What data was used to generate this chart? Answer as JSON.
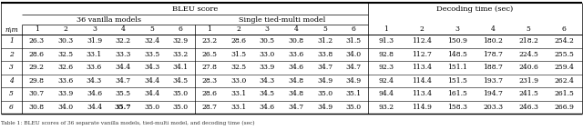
{
  "title_bleu": "BLEU score",
  "title_decoding": "Decoding time (sec)",
  "subtitle_vanilla": "36 vanilla models",
  "subtitle_tied": "Single tied-multi model",
  "col_header_nm": "n\\m",
  "col_nums": [
    "1",
    "2",
    "3",
    "4",
    "5",
    "6"
  ],
  "rows": [
    [
      "1",
      "26.3",
      "30.3",
      "31.9",
      "32.2",
      "32.4",
      "32.9",
      "23.2",
      "28.6",
      "30.5",
      "30.8",
      "31.2",
      "31.5",
      "91.3",
      "112.4",
      "150.9",
      "180.2",
      "218.2",
      "254.2"
    ],
    [
      "2",
      "28.6",
      "32.5",
      "33.1",
      "33.3",
      "33.5",
      "33.2",
      "26.5",
      "31.5",
      "33.0",
      "33.6",
      "33.8",
      "34.0",
      "92.8",
      "112.7",
      "148.5",
      "178.7",
      "224.5",
      "255.5"
    ],
    [
      "3",
      "29.2",
      "32.6",
      "33.6",
      "34.4",
      "34.3",
      "34.1",
      "27.8",
      "32.5",
      "33.9",
      "34.6",
      "34.7",
      "34.7",
      "92.3",
      "113.4",
      "151.1",
      "188.7",
      "240.6",
      "259.4"
    ],
    [
      "4",
      "29.8",
      "33.6",
      "34.3",
      "34.7",
      "34.4",
      "34.5",
      "28.3",
      "33.0",
      "34.3",
      "34.8",
      "34.9",
      "34.9",
      "92.4",
      "114.4",
      "151.5",
      "193.7",
      "231.9",
      "262.4"
    ],
    [
      "5",
      "30.7",
      "33.9",
      "34.6",
      "35.5",
      "34.4",
      "35.0",
      "28.6",
      "33.1",
      "34.5",
      "34.8",
      "35.0",
      "35.1",
      "94.4",
      "113.4",
      "161.5",
      "194.7",
      "241.5",
      "261.5"
    ],
    [
      "6",
      "30.8",
      "34.0",
      "34.4",
      "35.7",
      "35.0",
      "35.0",
      "28.7",
      "33.1",
      "34.6",
      "34.7",
      "34.9",
      "35.0",
      "93.2",
      "114.9",
      "158.3",
      "203.3",
      "246.3",
      "266.9"
    ]
  ],
  "bold_row": 5,
  "bold_col": 4,
  "caption": "Table 1: BLEU scores of 36 separate vanilla models...",
  "bg_color": "#ffffff",
  "line_color": "#000000",
  "text_color": "#000000",
  "caption_text": "Table 1: BLEU scores of 36 separate vanilla models, tied-multi model, and decoding time (sec)"
}
